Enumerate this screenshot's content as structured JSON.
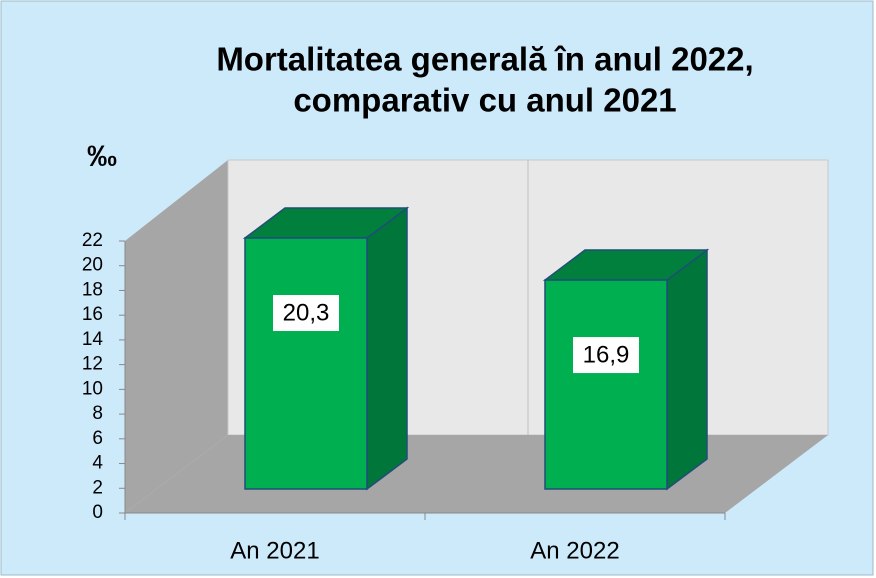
{
  "chart_data": {
    "type": "bar3d",
    "title": [
      "Mortalitatea generală în anul 2022,",
      "comparativ cu anul 2021"
    ],
    "y_label": "‰",
    "categories": [
      "An 2021",
      "An 2022"
    ],
    "values": [
      20.3,
      16.9
    ],
    "value_labels": [
      "20,3",
      "16,9"
    ],
    "color": "#00b050",
    "ylim": [
      0,
      22
    ],
    "yticks": [
      0,
      2,
      4,
      6,
      8,
      10,
      12,
      14,
      16,
      18,
      20,
      22
    ],
    "grid": false
  }
}
